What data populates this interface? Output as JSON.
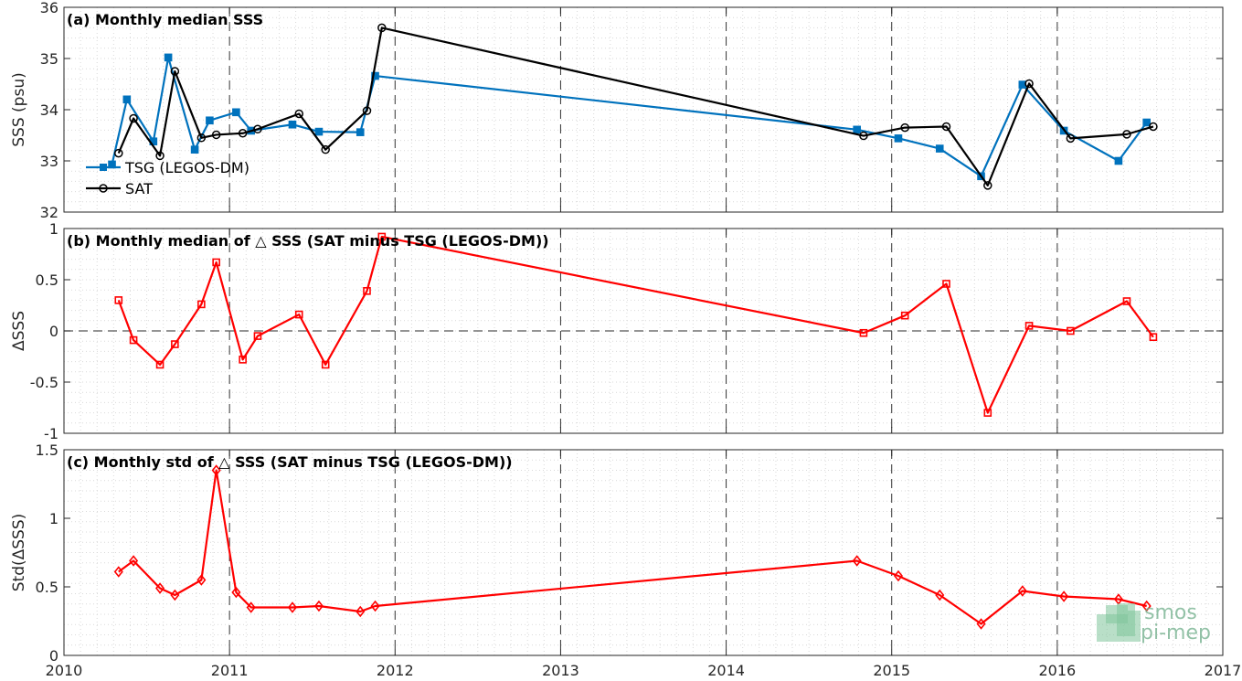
{
  "colors": {
    "tsg": "#0072BD",
    "sat": "#000000",
    "delta": "#FF0000",
    "axes": "#262626"
  },
  "logo": {
    "line1": "smos",
    "line2": "pi-mep"
  },
  "chart_data": [
    {
      "type": "line",
      "title": "(a) Monthly median SSS",
      "ylabel": "SSS (psu)",
      "xlim": [
        2010,
        2017
      ],
      "ylim": [
        32,
        36
      ],
      "yticks": [
        "32",
        "33",
        "34",
        "35",
        "36"
      ],
      "grid": true,
      "legend_placement": "lower-left",
      "series": [
        {
          "name": "TSG (LEGOS-DM)",
          "color": "#0072BD",
          "marker": "square",
          "x": [
            2010.29,
            2010.38,
            2010.54,
            2010.63,
            2010.79,
            2010.88,
            2011.04,
            2011.13,
            2011.38,
            2011.54,
            2011.79,
            2011.88,
            2014.79,
            2015.04,
            2015.29,
            2015.54,
            2015.79,
            2016.04,
            2016.37,
            2016.54
          ],
          "values": [
            32.93,
            34.2,
            33.38,
            35.02,
            33.22,
            33.79,
            33.95,
            33.59,
            33.71,
            33.57,
            33.56,
            34.66,
            33.61,
            33.44,
            33.24,
            32.7,
            34.49,
            33.59,
            33.0,
            33.75
          ]
        },
        {
          "name": "SAT",
          "color": "#000000",
          "marker": "circle",
          "x": [
            2010.33,
            2010.42,
            2010.58,
            2010.67,
            2010.83,
            2010.92,
            2011.08,
            2011.17,
            2011.42,
            2011.58,
            2011.83,
            2011.92,
            2014.83,
            2015.08,
            2015.33,
            2015.58,
            2015.83,
            2016.08,
            2016.42,
            2016.58
          ],
          "values": [
            33.15,
            33.83,
            33.1,
            34.75,
            33.45,
            33.51,
            33.54,
            33.62,
            33.92,
            33.22,
            33.98,
            35.6,
            33.49,
            33.65,
            33.67,
            32.52,
            34.51,
            33.44,
            33.52,
            33.67
          ]
        }
      ]
    },
    {
      "type": "line",
      "title": "(b) Monthly median of △ SSS (SAT minus TSG (LEGOS-DM))",
      "ylabel": "ΔSSS",
      "xlim": [
        2010,
        2017
      ],
      "ylim": [
        -1,
        1
      ],
      "yticks": [
        "-1",
        "-0.5",
        "0",
        "0.5",
        "1"
      ],
      "grid": true,
      "reference_line": 0,
      "series": [
        {
          "color": "#FF0000",
          "marker": "square",
          "x": [
            2010.33,
            2010.42,
            2010.58,
            2010.67,
            2010.83,
            2010.92,
            2011.08,
            2011.17,
            2011.42,
            2011.58,
            2011.83,
            2011.92,
            2014.83,
            2015.08,
            2015.33,
            2015.58,
            2015.83,
            2016.08,
            2016.42,
            2016.58
          ],
          "values": [
            0.3,
            -0.09,
            -0.33,
            -0.13,
            0.26,
            0.67,
            -0.28,
            -0.05,
            0.16,
            -0.33,
            0.39,
            0.92,
            -0.02,
            0.15,
            0.46,
            -0.8,
            0.05,
            0.0,
            0.29,
            -0.06
          ]
        }
      ]
    },
    {
      "type": "line",
      "title": "(c) Monthly std of △ SSS (SAT minus TSG (LEGOS-DM))",
      "ylabel": "Std(ΔSSS)",
      "xlabel": "",
      "xlim": [
        2010,
        2017
      ],
      "ylim": [
        0,
        1.5
      ],
      "yticks": [
        "0",
        "0.5",
        "1",
        "1.5"
      ],
      "xticks": [
        "2010",
        "2011",
        "2012",
        "2013",
        "2014",
        "2015",
        "2016",
        "2017"
      ],
      "grid": true,
      "series": [
        {
          "color": "#FF0000",
          "marker": "diamond",
          "x": [
            2010.33,
            2010.42,
            2010.58,
            2010.67,
            2010.83,
            2010.92,
            2011.04,
            2011.13,
            2011.38,
            2011.54,
            2011.79,
            2011.88,
            2014.79,
            2015.04,
            2015.29,
            2015.54,
            2015.79,
            2016.04,
            2016.37,
            2016.54
          ],
          "values": [
            0.61,
            0.69,
            0.49,
            0.44,
            0.55,
            1.35,
            0.46,
            0.35,
            0.35,
            0.36,
            0.32,
            0.36,
            0.69,
            0.58,
            0.44,
            0.23,
            0.47,
            0.43,
            0.41,
            0.36
          ]
        }
      ]
    }
  ]
}
